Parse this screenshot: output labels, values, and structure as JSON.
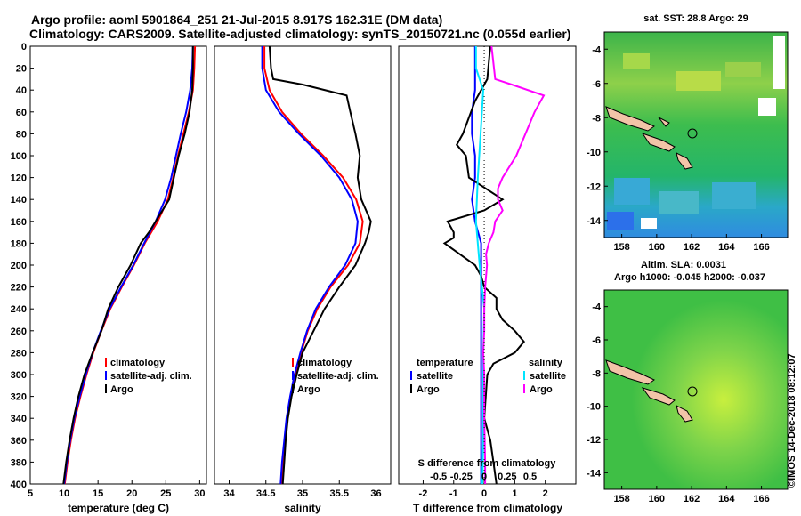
{
  "header": {
    "line1": "Argo profile: aoml 5901864_251 21-Jul-2015 8.917S 162.31E (DM data)",
    "line2": "Climatology: CARS2009. Satellite-adjusted climatology: synTS_20150721.nc (0.055d earlier)"
  },
  "map_top": {
    "title": "sat. SST: 28.8 Argo: 29",
    "x_ticks": [
      "158",
      "160",
      "162",
      "164",
      "166"
    ],
    "y_ticks": [
      "-4",
      "-6",
      "-8",
      "-10",
      "-12",
      "-14"
    ]
  },
  "map_bottom": {
    "title1": "Altim. SLA: 0.0031",
    "title2": "Argo h1000: -0.045 h2000: -0.037",
    "x_ticks": [
      "158",
      "160",
      "162",
      "164",
      "166"
    ],
    "y_ticks": [
      "-4",
      "-6",
      "-8",
      "-10",
      "-12",
      "-14"
    ]
  },
  "watermark": "©IMOS 14-Dec-2018 08:12:07",
  "colors": {
    "climatology": "#ff0000",
    "satellite": "#0000ff",
    "argo": "#000000",
    "satellite_s": "#00e5ff",
    "argo_s": "#ff00ff"
  },
  "depth_ticks": [
    "0",
    "20",
    "40",
    "60",
    "80",
    "100",
    "120",
    "140",
    "160",
    "180",
    "200",
    "220",
    "240",
    "260",
    "280",
    "300",
    "320",
    "340",
    "360",
    "380",
    "400"
  ],
  "chart_data": [
    {
      "type": "line",
      "id": "temperature",
      "xlabel": "temperature (deg C)",
      "ylabel": "depth",
      "xlim": [
        5,
        31
      ],
      "ylim": [
        400,
        0
      ],
      "x_ticks": [
        "5",
        "10",
        "15",
        "20",
        "25",
        "30"
      ],
      "legend": [
        "climatology",
        "satellite-adj. clim.",
        "Argo"
      ],
      "series": [
        {
          "name": "climatology",
          "depth": [
            0,
            20,
            40,
            60,
            80,
            100,
            120,
            140,
            160,
            180,
            200,
            220,
            240,
            260,
            280,
            300,
            320,
            340,
            360,
            380,
            400
          ],
          "values": [
            29.3,
            29.2,
            29.0,
            28.4,
            27.6,
            26.8,
            26.1,
            25.3,
            23.8,
            21.9,
            20.3,
            18.5,
            16.8,
            15.5,
            14.3,
            13.3,
            12.4,
            11.6,
            11.0,
            10.5,
            10.1
          ]
        },
        {
          "name": "satellite-adj. clim.",
          "depth": [
            0,
            20,
            40,
            60,
            80,
            100,
            120,
            140,
            160,
            180,
            200,
            220,
            240,
            260,
            280,
            300,
            320,
            340,
            360,
            380,
            400
          ],
          "values": [
            29.0,
            28.9,
            28.6,
            28.0,
            27.2,
            26.5,
            25.8,
            24.9,
            23.5,
            21.8,
            20.2,
            18.4,
            16.7,
            15.4,
            14.2,
            13.2,
            12.3,
            11.5,
            10.9,
            10.4,
            10.0
          ]
        },
        {
          "name": "Argo",
          "depth": [
            0,
            20,
            40,
            60,
            80,
            100,
            120,
            140,
            150,
            160,
            170,
            180,
            200,
            220,
            240,
            260,
            280,
            300,
            320,
            340,
            360,
            380,
            400
          ],
          "values": [
            29.0,
            29.0,
            28.9,
            28.5,
            27.8,
            26.9,
            26.2,
            25.5,
            24.5,
            23.5,
            22.5,
            21.3,
            19.8,
            18.0,
            16.5,
            15.5,
            14.2,
            13.0,
            12.1,
            11.4,
            10.8,
            10.3,
            9.9
          ]
        }
      ]
    },
    {
      "type": "line",
      "id": "salinity",
      "xlabel": "salinity",
      "ylabel": "depth",
      "xlim": [
        33.8,
        36.2
      ],
      "ylim": [
        400,
        0
      ],
      "x_ticks": [
        "34",
        "34.5",
        "35",
        "35.5",
        "36"
      ],
      "legend": [
        "climatology",
        "satellite-adj. clim.",
        "Argo"
      ],
      "series": [
        {
          "name": "climatology",
          "depth": [
            0,
            20,
            40,
            60,
            80,
            100,
            120,
            140,
            160,
            180,
            200,
            220,
            240,
            260,
            280,
            300,
            320,
            340,
            360,
            380,
            400
          ],
          "values": [
            34.48,
            34.48,
            34.55,
            34.72,
            34.98,
            35.28,
            35.55,
            35.73,
            35.82,
            35.78,
            35.62,
            35.38,
            35.2,
            35.07,
            34.98,
            34.9,
            34.84,
            34.79,
            34.76,
            34.73,
            34.71
          ]
        },
        {
          "name": "satellite-adj. clim.",
          "depth": [
            0,
            20,
            40,
            60,
            80,
            100,
            120,
            140,
            160,
            180,
            200,
            220,
            240,
            260,
            280,
            300,
            320,
            340,
            360,
            380,
            400
          ],
          "values": [
            34.45,
            34.45,
            34.5,
            34.68,
            34.95,
            35.25,
            35.5,
            35.67,
            35.75,
            35.72,
            35.58,
            35.36,
            35.18,
            35.06,
            34.97,
            34.89,
            34.83,
            34.78,
            34.75,
            34.72,
            34.7
          ]
        },
        {
          "name": "Argo",
          "depth": [
            0,
            10,
            20,
            30,
            35,
            45,
            60,
            80,
            100,
            120,
            140,
            160,
            170,
            180,
            200,
            220,
            240,
            260,
            280,
            300,
            320,
            340,
            360,
            380,
            400
          ],
          "values": [
            34.55,
            34.56,
            34.57,
            34.6,
            35.0,
            35.6,
            35.65,
            35.72,
            35.78,
            35.75,
            35.8,
            35.93,
            35.9,
            35.85,
            35.72,
            35.5,
            35.3,
            35.15,
            35.0,
            34.92,
            34.85,
            34.8,
            34.77,
            34.75,
            34.73
          ]
        }
      ]
    },
    {
      "type": "line",
      "id": "differences",
      "xlabel": "T difference from climatology",
      "x2label": "S difference from climatology",
      "ylabel": "depth",
      "xlim": [
        -2.8,
        3.0
      ],
      "ylim": [
        400,
        0
      ],
      "x_ticks": [
        "-2",
        "-1",
        "0",
        "1",
        "2"
      ],
      "x2_ticks": [
        "-0.5",
        "-0.25",
        "0",
        "0.25",
        "0.5"
      ],
      "legend_temperature": {
        "title": "temperature",
        "items": [
          "satellite",
          "Argo"
        ]
      },
      "legend_salinity": {
        "title": "salinity",
        "items": [
          "satellite",
          "Argo"
        ]
      },
      "series": [
        {
          "name": "temperature satellite",
          "depth": [
            0,
            40,
            60,
            80,
            100,
            120,
            140,
            160,
            180,
            200,
            220,
            240,
            260,
            280,
            300,
            340,
            400
          ],
          "values": [
            -0.3,
            -0.3,
            -0.4,
            -0.4,
            -0.3,
            -0.3,
            -0.4,
            -0.3,
            -0.1,
            -0.1,
            -0.1,
            -0.1,
            -0.1,
            -0.1,
            -0.1,
            -0.1,
            -0.1
          ]
        },
        {
          "name": "temperature Argo",
          "depth": [
            0,
            30,
            50,
            80,
            90,
            100,
            120,
            140,
            150,
            160,
            170,
            175,
            180,
            190,
            200,
            210,
            220,
            230,
            240,
            250,
            260,
            270,
            280,
            290,
            300,
            340,
            360,
            380,
            400
          ],
          "values": [
            0.2,
            0.1,
            -0.3,
            -0.7,
            -0.9,
            -0.6,
            -0.5,
            0.6,
            0.0,
            -1.2,
            -1.0,
            -1.0,
            -1.3,
            -0.8,
            -0.3,
            -0.1,
            0.0,
            0.4,
            0.4,
            0.6,
            1.0,
            1.3,
            1.0,
            0.3,
            0.1,
            0.0,
            0.2,
            0.3,
            0.4
          ]
        },
        {
          "name": "salinity satellite",
          "depth": [
            0,
            20,
            40,
            80,
            120,
            160,
            200,
            240,
            280,
            320,
            360,
            400
          ],
          "values": [
            -0.09,
            -0.09,
            -0.01,
            -0.04,
            -0.07,
            -0.09,
            -0.05,
            0.0,
            -0.01,
            -0.01,
            -0.01,
            -0.02
          ]
        },
        {
          "name": "salinity Argo",
          "depth": [
            0,
            30,
            35,
            45,
            60,
            80,
            100,
            120,
            130,
            140,
            150,
            160,
            170,
            180,
            190,
            200,
            220,
            240,
            260,
            280,
            300,
            340,
            380,
            400
          ],
          "values": [
            0.08,
            0.12,
            0.3,
            0.65,
            0.55,
            0.45,
            0.35,
            0.2,
            0.15,
            0.15,
            0.2,
            0.12,
            0.1,
            0.05,
            0.02,
            0.03,
            0.01,
            0.0,
            0.0,
            -0.01,
            0.0,
            0.0,
            0.01,
            0.01
          ]
        }
      ]
    }
  ]
}
